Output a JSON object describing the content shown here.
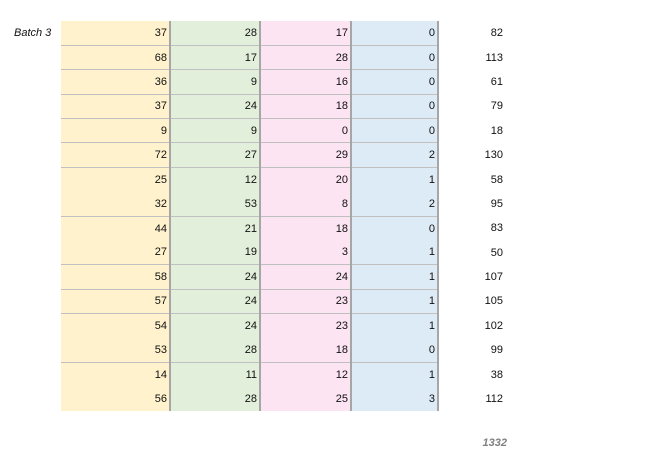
{
  "batch_label": "Batch 3",
  "colors": {
    "col1": "#fff2cc",
    "col2": "#e2efda",
    "col3": "#fce4f3",
    "col4": "#ddebf7"
  },
  "rows": [
    {
      "v": [
        37,
        28,
        17,
        0
      ],
      "total": 82,
      "border": true
    },
    {
      "v": [
        68,
        17,
        28,
        0
      ],
      "total": 113,
      "border": true
    },
    {
      "v": [
        36,
        9,
        16,
        0
      ],
      "total": 61,
      "border": true
    },
    {
      "v": [
        37,
        24,
        18,
        0
      ],
      "total": 79,
      "border": true
    },
    {
      "v": [
        9,
        9,
        0,
        0
      ],
      "total": 18,
      "border": true
    },
    {
      "v": [
        72,
        27,
        29,
        2
      ],
      "total": 130,
      "border": true
    },
    {
      "v": [
        25,
        12,
        20,
        1
      ],
      "total": 58,
      "border": false
    },
    {
      "v": [
        32,
        53,
        8,
        2
      ],
      "total": 95,
      "border": true
    },
    {
      "v": [
        44,
        21,
        18,
        0
      ],
      "total": 83,
      "border": false
    },
    {
      "v": [
        27,
        19,
        3,
        1
      ],
      "total": 50,
      "border": true
    },
    {
      "v": [
        58,
        24,
        24,
        1
      ],
      "total": 107,
      "border": true
    },
    {
      "v": [
        57,
        24,
        23,
        1
      ],
      "total": 105,
      "border": true
    },
    {
      "v": [
        54,
        24,
        23,
        1
      ],
      "total": 102,
      "border": false
    },
    {
      "v": [
        53,
        28,
        18,
        0
      ],
      "total": 99,
      "border": true
    },
    {
      "v": [
        14,
        11,
        12,
        1
      ],
      "total": 38,
      "border": false
    },
    {
      "v": [
        56,
        28,
        25,
        3
      ],
      "total": 112,
      "border": false
    }
  ],
  "grand_total": "1332"
}
